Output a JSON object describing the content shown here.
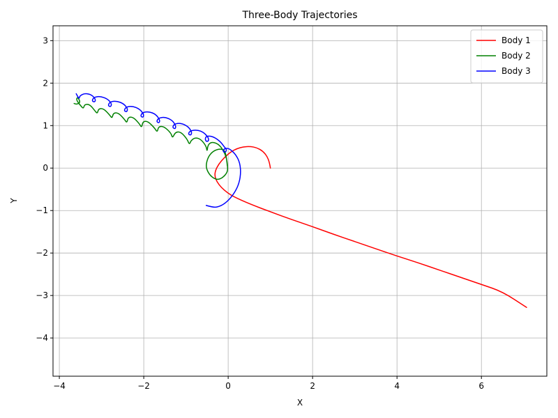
{
  "chart_data": {
    "type": "line",
    "title": "Three-Body Trajectories",
    "xlabel": "X",
    "ylabel": "Y",
    "xlim": [
      -4.15,
      7.55
    ],
    "ylim": [
      -4.9,
      3.35
    ],
    "xticks": [
      -4,
      -2,
      0,
      2,
      4,
      6
    ],
    "yticks": [
      -4,
      -3,
      -2,
      -1,
      0,
      1,
      2,
      3
    ],
    "xtick_labels": [
      "−4",
      "−2",
      "0",
      "2",
      "4",
      "6"
    ],
    "ytick_labels": [
      "−4",
      "−3",
      "−2",
      "−1",
      "0",
      "1",
      "2",
      "3"
    ],
    "grid": true,
    "legend_position": "top-right",
    "series": [
      {
        "name": "Body 1",
        "color": "#ff0000",
        "points": [
          [
            1.0,
            0.0
          ],
          [
            0.98,
            0.13
          ],
          [
            0.92,
            0.28
          ],
          [
            0.82,
            0.4
          ],
          [
            0.68,
            0.48
          ],
          [
            0.52,
            0.51
          ],
          [
            0.36,
            0.5
          ],
          [
            0.21,
            0.46
          ],
          [
            0.06,
            0.38
          ],
          [
            -0.09,
            0.25
          ],
          [
            -0.22,
            0.1
          ],
          [
            -0.3,
            -0.05
          ],
          [
            -0.32,
            -0.18
          ],
          [
            -0.27,
            -0.32
          ],
          [
            -0.16,
            -0.46
          ],
          [
            -0.02,
            -0.58
          ],
          [
            0.14,
            -0.68
          ],
          [
            0.5,
            -0.84
          ],
          [
            1.0,
            -1.03
          ],
          [
            1.5,
            -1.21
          ],
          [
            2.0,
            -1.38
          ],
          [
            2.5,
            -1.56
          ],
          [
            3.0,
            -1.73
          ],
          [
            3.5,
            -1.9
          ],
          [
            4.0,
            -2.07
          ],
          [
            4.5,
            -2.23
          ],
          [
            5.0,
            -2.4
          ],
          [
            5.5,
            -2.57
          ],
          [
            6.0,
            -2.74
          ],
          [
            6.5,
            -2.91
          ],
          [
            7.07,
            -3.28
          ]
        ]
      },
      {
        "name": "Body 2",
        "color": "#008000",
        "points": [
          [
            -0.02,
            0.05
          ],
          [
            -0.05,
            0.35
          ],
          [
            -0.12,
            0.44
          ],
          [
            -0.24,
            0.45
          ],
          [
            -0.38,
            0.38
          ],
          [
            -0.48,
            0.25
          ],
          [
            -0.53,
            0.05
          ],
          [
            -0.48,
            -0.1
          ],
          [
            -0.38,
            -0.22
          ],
          [
            -0.25,
            -0.28
          ],
          [
            -0.12,
            -0.22
          ],
          [
            -0.02,
            -0.1
          ],
          [
            -0.01,
            0.02
          ],
          [
            -0.05,
            0.3
          ],
          [
            -0.2,
            0.55
          ],
          [
            -0.38,
            0.62
          ],
          [
            -0.48,
            0.55
          ],
          [
            -0.5,
            0.38
          ],
          [
            -0.52,
            0.52
          ],
          [
            -0.65,
            0.68
          ],
          [
            -0.78,
            0.72
          ],
          [
            -0.88,
            0.65
          ],
          [
            -0.92,
            0.55
          ],
          [
            -0.97,
            0.68
          ],
          [
            -1.12,
            0.85
          ],
          [
            -1.25,
            0.85
          ],
          [
            -1.32,
            0.7
          ],
          [
            -1.35,
            0.82
          ],
          [
            -1.52,
            0.98
          ],
          [
            -1.65,
            0.98
          ],
          [
            -1.68,
            0.84
          ],
          [
            -1.74,
            0.94
          ],
          [
            -1.9,
            1.1
          ],
          [
            -2.02,
            1.1
          ],
          [
            -2.05,
            0.95
          ],
          [
            -2.1,
            1.04
          ],
          [
            -2.25,
            1.2
          ],
          [
            -2.37,
            1.2
          ],
          [
            -2.4,
            1.06
          ],
          [
            -2.45,
            1.14
          ],
          [
            -2.6,
            1.3
          ],
          [
            -2.72,
            1.3
          ],
          [
            -2.75,
            1.17
          ],
          [
            -2.8,
            1.24
          ],
          [
            -2.95,
            1.4
          ],
          [
            -3.07,
            1.4
          ],
          [
            -3.1,
            1.28
          ],
          [
            -3.15,
            1.34
          ],
          [
            -3.28,
            1.5
          ],
          [
            -3.4,
            1.5
          ],
          [
            -3.43,
            1.4
          ],
          [
            -3.48,
            1.45
          ],
          [
            -3.6,
            1.6
          ],
          [
            -3.57,
            1.68
          ],
          [
            -3.5,
            1.55
          ],
          [
            -3.58,
            1.5
          ],
          [
            -3.65,
            1.52
          ]
        ]
      },
      {
        "name": "Body 3",
        "color": "#0000ff",
        "points": [
          [
            -0.52,
            -0.88
          ],
          [
            -0.38,
            -0.92
          ],
          [
            -0.25,
            -0.92
          ],
          [
            -0.08,
            -0.84
          ],
          [
            0.1,
            -0.66
          ],
          [
            0.24,
            -0.42
          ],
          [
            0.3,
            -0.15
          ],
          [
            0.28,
            0.12
          ],
          [
            0.18,
            0.32
          ],
          [
            0.04,
            0.45
          ],
          [
            -0.05,
            0.47
          ],
          [
            -0.12,
            0.43
          ],
          [
            -0.11,
            0.37
          ],
          [
            -0.05,
            0.38
          ],
          [
            -0.04,
            0.45
          ],
          [
            -0.08,
            0.48
          ],
          [
            -0.18,
            0.62
          ],
          [
            -0.35,
            0.74
          ],
          [
            -0.5,
            0.76
          ],
          [
            -0.55,
            0.7
          ],
          [
            -0.52,
            0.62
          ],
          [
            -0.46,
            0.64
          ],
          [
            -0.47,
            0.72
          ],
          [
            -0.58,
            0.84
          ],
          [
            -0.73,
            0.9
          ],
          [
            -0.9,
            0.88
          ],
          [
            -0.95,
            0.8
          ],
          [
            -0.88,
            0.77
          ],
          [
            -0.86,
            0.85
          ],
          [
            -0.95,
            0.98
          ],
          [
            -1.12,
            1.06
          ],
          [
            -1.28,
            1.04
          ],
          [
            -1.32,
            0.95
          ],
          [
            -1.25,
            0.92
          ],
          [
            -1.24,
            1.0
          ],
          [
            -1.33,
            1.13
          ],
          [
            -1.5,
            1.2
          ],
          [
            -1.65,
            1.18
          ],
          [
            -1.7,
            1.09
          ],
          [
            -1.63,
            1.06
          ],
          [
            -1.62,
            1.14
          ],
          [
            -1.72,
            1.27
          ],
          [
            -1.88,
            1.33
          ],
          [
            -2.03,
            1.31
          ],
          [
            -2.08,
            1.22
          ],
          [
            -2.01,
            1.19
          ],
          [
            -2.0,
            1.27
          ],
          [
            -2.1,
            1.39
          ],
          [
            -2.27,
            1.46
          ],
          [
            -2.42,
            1.44
          ],
          [
            -2.47,
            1.35
          ],
          [
            -2.4,
            1.32
          ],
          [
            -2.38,
            1.4
          ],
          [
            -2.48,
            1.52
          ],
          [
            -2.65,
            1.58
          ],
          [
            -2.8,
            1.56
          ],
          [
            -2.85,
            1.47
          ],
          [
            -2.78,
            1.44
          ],
          [
            -2.76,
            1.52
          ],
          [
            -2.86,
            1.63
          ],
          [
            -3.03,
            1.69
          ],
          [
            -3.18,
            1.67
          ],
          [
            -3.23,
            1.58
          ],
          [
            -3.16,
            1.55
          ],
          [
            -3.14,
            1.62
          ],
          [
            -3.24,
            1.73
          ],
          [
            -3.4,
            1.76
          ],
          [
            -3.52,
            1.7
          ],
          [
            -3.53,
            1.62
          ],
          [
            -3.6,
            1.75
          ]
        ]
      }
    ]
  }
}
